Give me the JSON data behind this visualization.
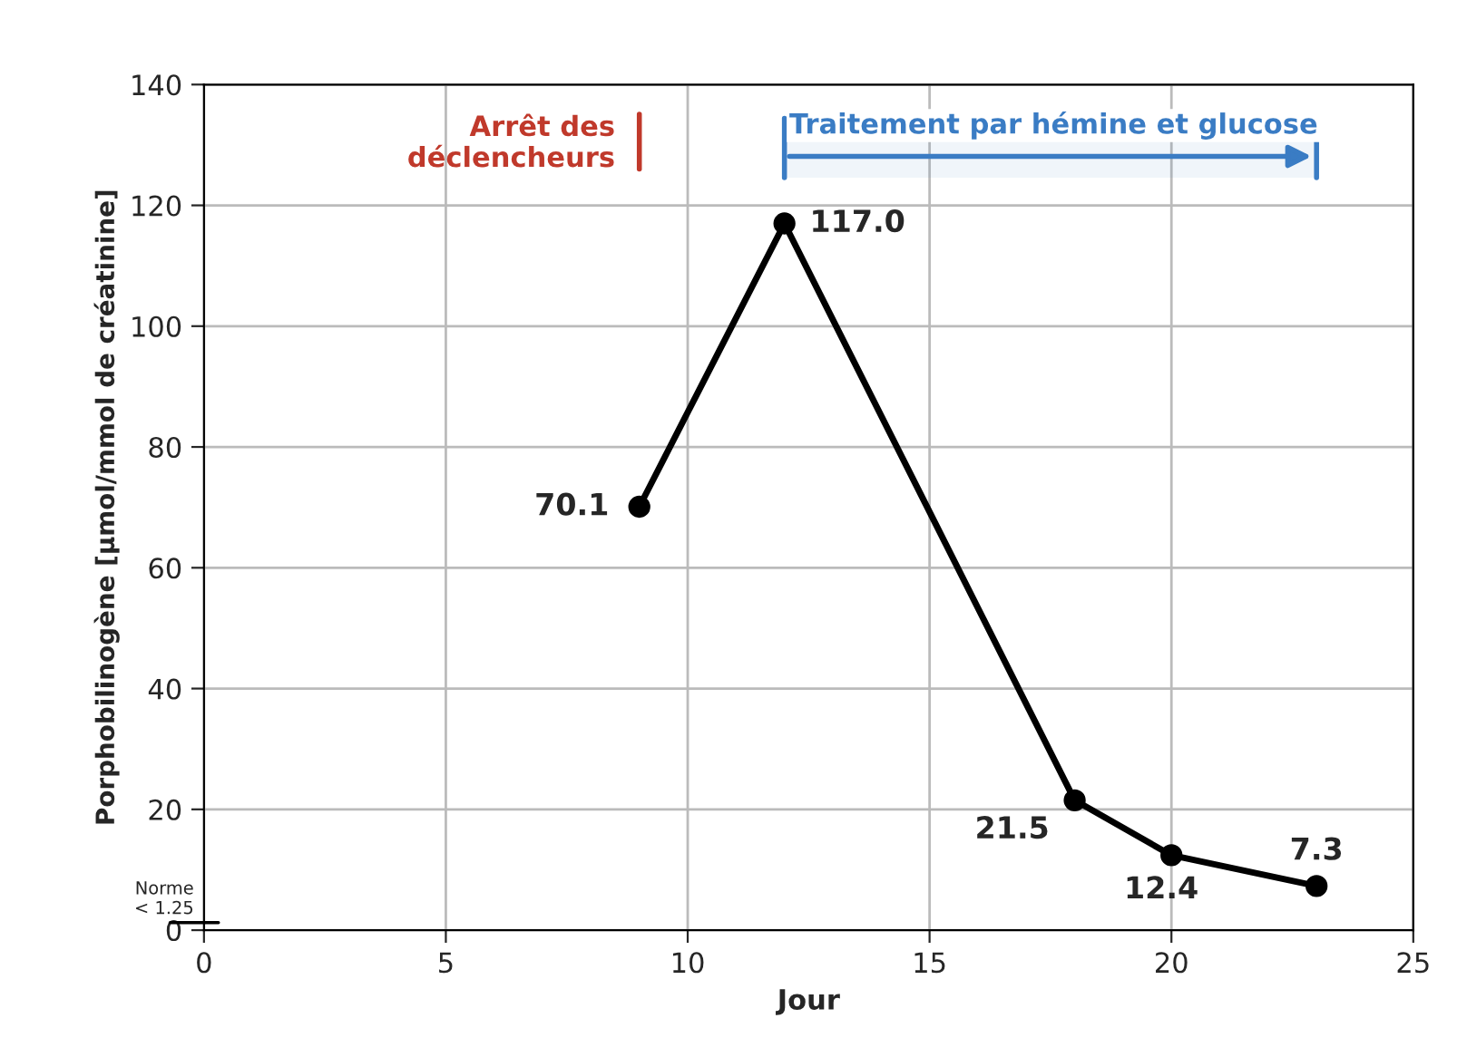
{
  "chart_data": {
    "type": "line",
    "xlabel": "Jour",
    "ylabel": "Porphobilinogène [µmol/mmol de créatinine]",
    "x": [
      9,
      12,
      18,
      20,
      23
    ],
    "series": [
      {
        "color": "#000000",
        "values": [
          70.1,
          117.0,
          21.5,
          12.4,
          7.3
        ]
      }
    ],
    "value_labels": [
      "70.1",
      "117.0",
      "21.5",
      "12.4",
      "7.3"
    ],
    "xlim": [
      0,
      25
    ],
    "xticks": [
      0,
      5,
      10,
      15,
      20,
      25
    ],
    "ylim": [
      0,
      140
    ],
    "yticks": [
      0,
      20,
      40,
      60,
      80,
      100,
      120,
      140
    ],
    "grid": true,
    "marker": "circle",
    "line_style": "solid",
    "ref_lines": [
      {
        "axis": "x",
        "value": 9,
        "label": "Arrêt des\ndéclencheurs",
        "color": "#c0392b"
      },
      {
        "axis": "y",
        "value": 1.25,
        "label": "Norme\n< 1.25",
        "color": "#000000"
      }
    ],
    "bands": [
      {
        "axis": "x",
        "from": 12,
        "to": 23,
        "label": "Traitement par hémine et glucose",
        "color": "#3a7cc4"
      }
    ]
  }
}
